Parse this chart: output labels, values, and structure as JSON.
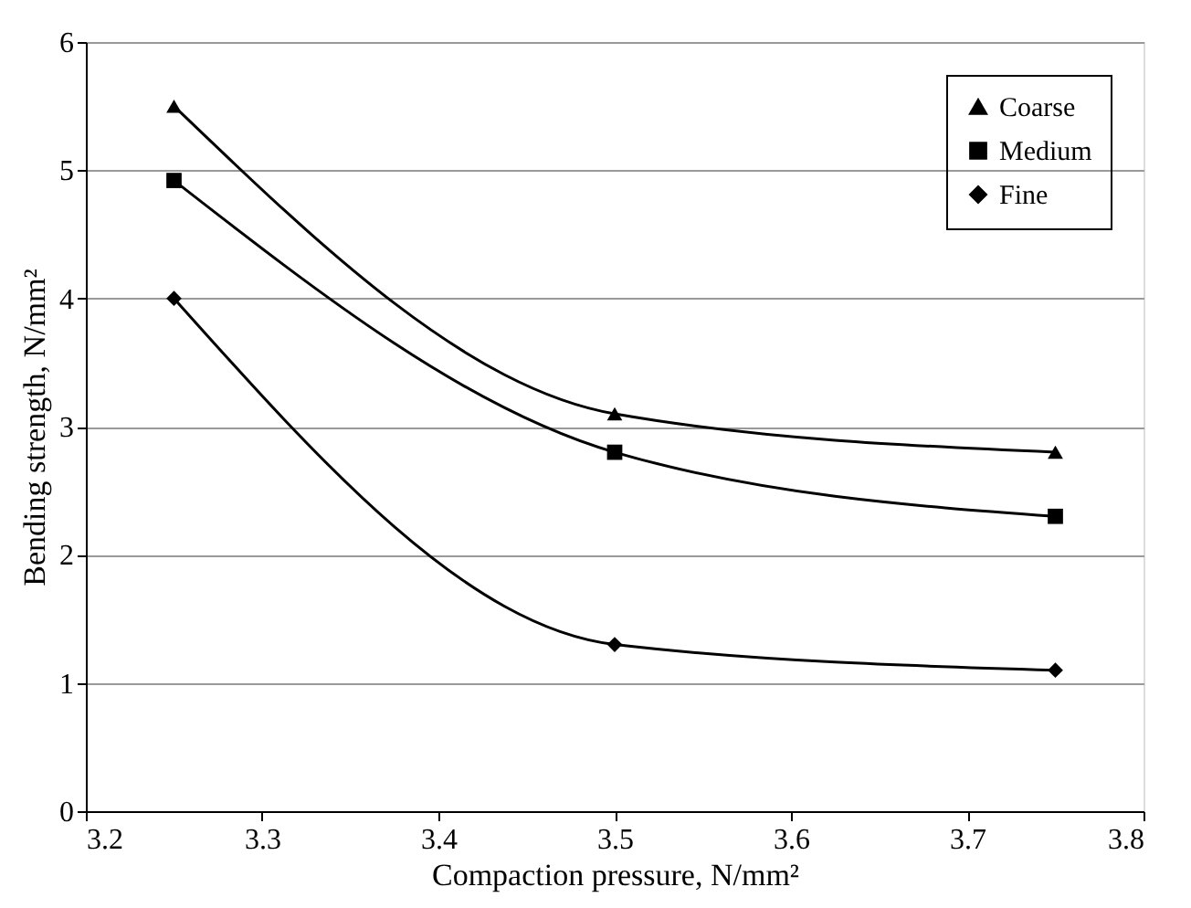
{
  "chart_data": {
    "type": "line",
    "xlabel": "Compaction pressure, N/mm²",
    "ylabel": "Bending strength, N/mm²",
    "x": [
      3.25,
      3.5,
      3.75
    ],
    "series": [
      {
        "name": "Coarse",
        "color": "#000000",
        "marker": "triangle",
        "values": [
          5.5,
          3.1,
          2.8
        ]
      },
      {
        "name": "Medium",
        "color": "#000000",
        "marker": "square",
        "values": [
          4.92,
          2.8,
          2.3
        ]
      },
      {
        "name": "Fine",
        "color": "#000000",
        "marker": "diamond",
        "values": [
          4.0,
          1.3,
          1.1
        ]
      }
    ],
    "xlim": [
      3.2,
      3.8
    ],
    "xticks": [
      3.2,
      3.3,
      3.4,
      3.5,
      3.6,
      3.7,
      3.8
    ],
    "ylim": [
      0,
      6
    ],
    "yticks": [
      0,
      1,
      2,
      3,
      4,
      5,
      6
    ],
    "grid": "y",
    "legend": "top right",
    "line_style": "solid"
  }
}
